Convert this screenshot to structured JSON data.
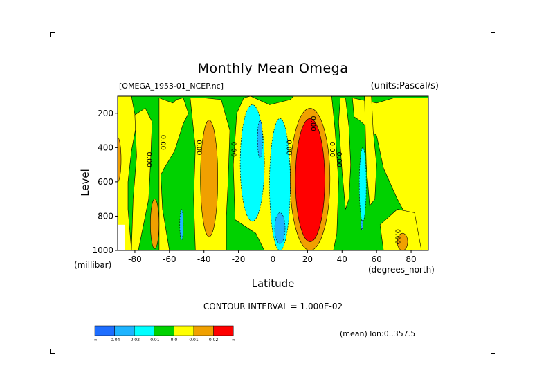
{
  "chart_data": {
    "type": "heatmap",
    "title": "Monthly Mean Omega",
    "source_label": "[OMEGA_1953-01_NCEP.nc]",
    "units_label": "(units:Pascal/s)",
    "xlabel": "Latitude",
    "x_units_label": "(degrees_north)",
    "ylabel": "Level",
    "y_units_label": "(millibar)",
    "xlim": [
      -90,
      90
    ],
    "ylim": [
      1000,
      100
    ],
    "x_ticks": [
      "-80",
      "-60",
      "-40",
      "-20",
      "0",
      "20",
      "40",
      "60",
      "80"
    ],
    "x_tick_values": [
      -80,
      -60,
      -40,
      -20,
      0,
      20,
      40,
      60,
      80
    ],
    "y_ticks": [
      "200",
      "400",
      "600",
      "800",
      "1000"
    ],
    "y_tick_values": [
      200,
      400,
      600,
      800,
      1000
    ],
    "contour_interval_label": "CONTOUR INTERVAL = 1.000E-02",
    "mean_label": "(mean) lon:0..357.5",
    "contour_labels": [
      "0.00",
      "0.00",
      "0.00",
      "0.00",
      "0.00",
      "0.00",
      "0.00",
      "0.00",
      "0.00",
      "0.02"
    ],
    "colorbar": {
      "labels": [
        "-∞",
        "-0.04",
        "-0.02",
        "-0.01",
        "0.0",
        "0.01",
        "0.02",
        "∞"
      ],
      "colors": [
        "#1e6eff",
        "#1eb4ff",
        "#00ffff",
        "#00d200",
        "#ffff00",
        "#f0a000",
        "#ff0000"
      ]
    },
    "regions": [
      {
        "level": "positive",
        "color": "#f0a000",
        "lat": [
          -92,
          -88
        ],
        "p": [
          340,
          600
        ]
      },
      {
        "level": "positive",
        "color": "#f0a000",
        "lat": [
          -71,
          -66
        ],
        "p": [
          700,
          990
        ]
      },
      {
        "level": "negative",
        "color": "#1eb4ff",
        "lat": [
          -54,
          -52
        ],
        "p": [
          760,
          940
        ]
      },
      {
        "level": "positive",
        "color": "#f0a000",
        "lat": [
          -42,
          -32
        ],
        "p": [
          240,
          920
        ]
      },
      {
        "level": "strong_negative",
        "color": "#00ffff",
        "lat": [
          -19,
          -5
        ],
        "p": [
          150,
          830
        ]
      },
      {
        "level": "very_negative",
        "color": "#1eb4ff",
        "lat": [
          -9,
          -6
        ],
        "p": [
          240,
          460
        ]
      },
      {
        "level": "strong_negative",
        "color": "#00ffff",
        "lat": [
          -2,
          10
        ],
        "p": [
          230,
          1000
        ]
      },
      {
        "level": "very_negative",
        "color": "#1eb4ff",
        "lat": [
          1,
          7
        ],
        "p": [
          780,
          960
        ]
      },
      {
        "level": "positive",
        "color": "#f0a000",
        "lat": [
          10,
          33
        ],
        "p": [
          170,
          1000
        ]
      },
      {
        "level": "strong_positive",
        "color": "#ff0000",
        "lat": [
          13,
          30
        ],
        "p": [
          230,
          950
        ]
      },
      {
        "level": "negative",
        "color": "#00ffff",
        "lat": [
          50,
          54
        ],
        "p": [
          400,
          830
        ]
      },
      {
        "level": "negative",
        "color": "#1eb4ff",
        "lat": [
          51,
          52
        ],
        "p": [
          820,
          880
        ]
      },
      {
        "level": "positive",
        "color": "#f0a000",
        "lat": [
          72,
          78
        ],
        "p": [
          900,
          1000
        ]
      }
    ]
  }
}
